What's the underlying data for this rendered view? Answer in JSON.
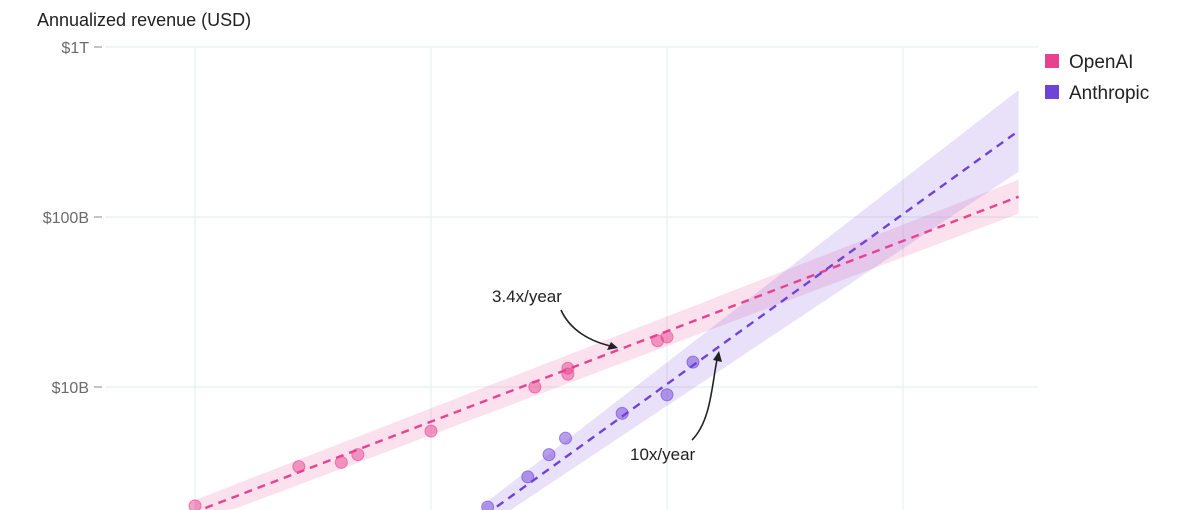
{
  "chart_data": {
    "type": "scatter",
    "ylabel": "Annualized revenue (USD)",
    "y_scale": "log",
    "y_unit": "USD billions",
    "ylim": [
      1.9,
      1000
    ],
    "xlim": [
      2023.6,
      2027.7
    ],
    "x_unit": "year",
    "y_ticks": [
      {
        "value": 1000,
        "label": "$1T"
      },
      {
        "value": 100,
        "label": "$100B"
      },
      {
        "value": 10,
        "label": "$10B"
      }
    ],
    "x_gridlines": [
      2024,
      2025,
      2026,
      2027
    ],
    "grid": true,
    "legend_placement": "top-right",
    "series": [
      {
        "name": "OpenAI",
        "color": "#e8418f",
        "points": [
          [
            2024.0,
            2.0
          ],
          [
            2024.44,
            3.4
          ],
          [
            2024.62,
            3.6
          ],
          [
            2024.69,
            4.0
          ],
          [
            2025.0,
            5.5
          ],
          [
            2025.44,
            10.0
          ],
          [
            2025.58,
            12.9
          ],
          [
            2025.58,
            11.9
          ],
          [
            2025.96,
            18.7
          ],
          [
            2026.0,
            19.7
          ]
        ],
        "trend": {
          "growth_per_year": 3.4,
          "anchor_year": 2024.0,
          "anchor_value": 1.84,
          "x_range": [
            2024.0,
            2027.49
          ],
          "band_decades": [
            0.07,
            0.1
          ]
        },
        "annotation": "3.4x/year"
      },
      {
        "name": "Anthropic",
        "color": "#6f42d8",
        "points": [
          [
            2025.24,
            1.97
          ],
          [
            2025.41,
            2.96
          ],
          [
            2025.5,
            4.0
          ],
          [
            2025.57,
            5.0
          ],
          [
            2025.81,
            7.0
          ],
          [
            2026.0,
            9.0
          ],
          [
            2026.11,
            14.0
          ]
        ],
        "trend": {
          "growth_per_year": 10,
          "anchor_year": 2026.0,
          "anchor_value": 10.4,
          "x_range": [
            2025.1,
            2027.49
          ],
          "band_decades": [
            0.06,
            0.24
          ]
        },
        "annotation": "10x/year"
      }
    ]
  }
}
